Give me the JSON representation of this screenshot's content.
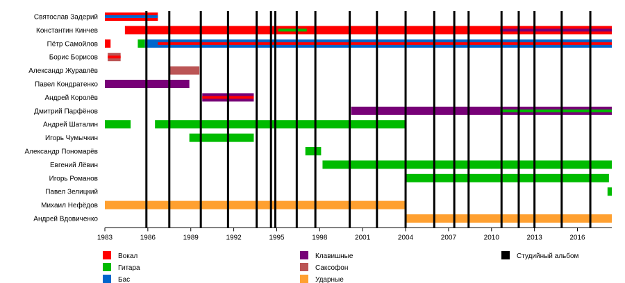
{
  "chart_data": {
    "type": "timeline",
    "title": "",
    "xlabel": "",
    "ylabel": "",
    "xlim": [
      1983,
      2018.4
    ],
    "x_ticks": [
      1983,
      1986,
      1989,
      1992,
      1995,
      1998,
      2001,
      2004,
      2007,
      2010,
      2013,
      2016
    ],
    "grid": false,
    "legend_position": "bottom",
    "roles": {
      "vocals": {
        "label": "Вокал",
        "color": "#ff0000"
      },
      "guitar": {
        "label": "Гитара",
        "color": "#00bb00"
      },
      "bass": {
        "label": "Бас",
        "color": "#0066cc"
      },
      "keyboards": {
        "label": "Клавишные",
        "color": "#770077"
      },
      "saxophone": {
        "label": "Саксофон",
        "color": "#bb5555"
      },
      "drums": {
        "label": "Ударные",
        "color": "#ffa030"
      },
      "album": {
        "label": "Студийный альбом",
        "color": "#000000"
      }
    },
    "legend_order": [
      "vocals",
      "guitar",
      "bass",
      "keyboards",
      "saxophone",
      "drums",
      "album"
    ],
    "members": [
      {
        "name": "Святослав Задерий",
        "periods": [
          {
            "role": "vocals",
            "start": 1983.0,
            "end": 1986.7
          },
          {
            "role": "bass",
            "start": 1983.0,
            "end": 1986.7,
            "inner": true
          }
        ]
      },
      {
        "name": "Константин Кинчев",
        "periods": [
          {
            "role": "vocals",
            "start": 1984.4,
            "end": 2018.4
          },
          {
            "role": "guitar",
            "start": 1995.1,
            "end": 1997.1,
            "inner": true
          },
          {
            "role": "keyboards",
            "start": 2010.6,
            "end": 2018.4,
            "inner": true
          }
        ]
      },
      {
        "name": "Пётр Самойлов",
        "periods": [
          {
            "role": "vocals",
            "start": 1983.0,
            "end": 1983.4
          },
          {
            "role": "guitar",
            "start": 1985.3,
            "end": 1985.8
          },
          {
            "role": "bass",
            "start": 1985.8,
            "end": 2018.4
          },
          {
            "role": "vocals",
            "start": 1986.7,
            "end": 2018.4,
            "inner": true
          }
        ]
      },
      {
        "name": "Борис Борисов",
        "periods": [
          {
            "role": "saxophone",
            "start": 1983.2,
            "end": 1984.1
          },
          {
            "role": "vocals",
            "start": 1983.2,
            "end": 1984.1,
            "inner": true
          }
        ]
      },
      {
        "name": "Александр Журавлёв",
        "periods": [
          {
            "role": "saxophone",
            "start": 1987.5,
            "end": 1989.6
          }
        ]
      },
      {
        "name": "Павел Кондратенко",
        "periods": [
          {
            "role": "keyboards",
            "start": 1983.0,
            "end": 1988.9
          }
        ]
      },
      {
        "name": "Андрей Королёв",
        "periods": [
          {
            "role": "keyboards",
            "start": 1989.8,
            "end": 1993.4
          },
          {
            "role": "vocals",
            "start": 1989.8,
            "end": 1993.4,
            "inner": true
          }
        ]
      },
      {
        "name": "Дмитрий Парфёнов",
        "periods": [
          {
            "role": "keyboards",
            "start": 2000.2,
            "end": 2018.4
          },
          {
            "role": "guitar",
            "start": 2010.6,
            "end": 2018.4,
            "inner": true
          }
        ]
      },
      {
        "name": "Андрей Шаталин",
        "periods": [
          {
            "role": "guitar",
            "start": 1983.0,
            "end": 1984.8
          },
          {
            "role": "guitar",
            "start": 1986.5,
            "end": 2004.0
          }
        ]
      },
      {
        "name": "Игорь Чумычкин",
        "periods": [
          {
            "role": "guitar",
            "start": 1988.9,
            "end": 1993.4
          }
        ]
      },
      {
        "name": "Александр Пономарёв",
        "periods": [
          {
            "role": "guitar",
            "start": 1997.0,
            "end": 1998.1
          }
        ]
      },
      {
        "name": "Евгений Лёвин",
        "periods": [
          {
            "role": "guitar",
            "start": 1998.2,
            "end": 2018.4
          }
        ]
      },
      {
        "name": "Игорь Романов",
        "periods": [
          {
            "role": "guitar",
            "start": 2004.0,
            "end": 2018.2
          }
        ]
      },
      {
        "name": "Павел Зелицкий",
        "periods": [
          {
            "role": "guitar",
            "start": 2018.1,
            "end": 2018.4
          }
        ]
      },
      {
        "name": "Михаил Нефёдов",
        "periods": [
          {
            "role": "drums",
            "start": 1983.0,
            "end": 2004.0
          }
        ]
      },
      {
        "name": "Андрей Вдовиченко",
        "periods": [
          {
            "role": "drums",
            "start": 2004.0,
            "end": 2018.4
          }
        ]
      }
    ],
    "albums": [
      1985.9,
      1987.5,
      1989.7,
      1991.6,
      1993.6,
      1994.6,
      1994.9,
      1996.4,
      1997.7,
      2000.1,
      2002.0,
      2004.0,
      2006.0,
      2007.4,
      2008.4,
      2010.7,
      2011.9,
      2013.0,
      2014.9,
      2016.9
    ]
  }
}
